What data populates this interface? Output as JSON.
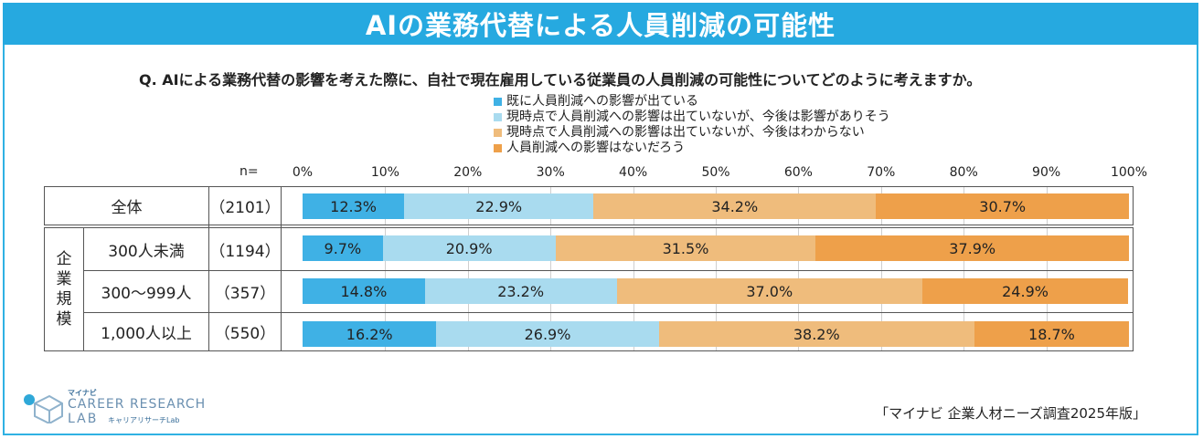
{
  "header": {
    "title": "AIの業務代替による人員削減の可能性"
  },
  "question": "Q.  AIによる業務代替の影響を考えた際に、自社で現在雇用している従業員の人員削減の可能性についてどのように考えますか。",
  "colors": {
    "c1": "#3fb1e5",
    "c2": "#a9dbef",
    "c3": "#efbc7c",
    "c4": "#eea04a",
    "band": "#26a9e0"
  },
  "chart_data": {
    "type": "bar",
    "orientation": "horizontal-stacked-100",
    "n_label": "n=",
    "ticks": [
      "0%",
      "10%",
      "20%",
      "30%",
      "40%",
      "50%",
      "60%",
      "70%",
      "80%",
      "90%",
      "100%"
    ],
    "xlim": [
      0,
      100
    ],
    "series": [
      {
        "name": "既に人員削減への影響が出ている",
        "color": "#3fb1e5"
      },
      {
        "name": "現時点で人員削減への影響は出ていないが、今後は影響がありそう",
        "color": "#a9dbef"
      },
      {
        "name": "現時点で人員削減への影響は出ていないが、今後はわからない",
        "color": "#efbc7c"
      },
      {
        "name": "人員削減への影響はないだろう",
        "color": "#eea04a"
      }
    ],
    "group_label": [
      "企",
      "業",
      "規",
      "模"
    ],
    "rows": [
      {
        "label": "全体",
        "n": "（2101）",
        "values": [
          12.3,
          22.9,
          34.2,
          30.7
        ],
        "display": [
          "12.3%",
          "22.9%",
          "34.2%",
          "30.7%"
        ]
      },
      {
        "label": "300人未満",
        "n": "（1194）",
        "values": [
          9.7,
          20.9,
          31.5,
          37.9
        ],
        "display": [
          "9.7%",
          "20.9%",
          "31.5%",
          "37.9%"
        ]
      },
      {
        "label": "300～999人",
        "n": "（357）",
        "values": [
          14.8,
          23.2,
          37.0,
          24.9
        ],
        "display": [
          "14.8%",
          "23.2%",
          "37.0%",
          "24.9%"
        ]
      },
      {
        "label": "1,000人以上",
        "n": "（550）",
        "values": [
          16.2,
          26.9,
          38.2,
          18.7
        ],
        "display": [
          "16.2%",
          "26.9%",
          "38.2%",
          "18.7%"
        ]
      }
    ]
  },
  "footer": {
    "logo_small": "マイナビ",
    "logo_line1": "CAREER RESEARCH",
    "logo_line2": "LAB",
    "logo_sub": "キャリアリサーチLab",
    "source": "「マイナビ 企業人材ニーズ調査2025年版」"
  }
}
